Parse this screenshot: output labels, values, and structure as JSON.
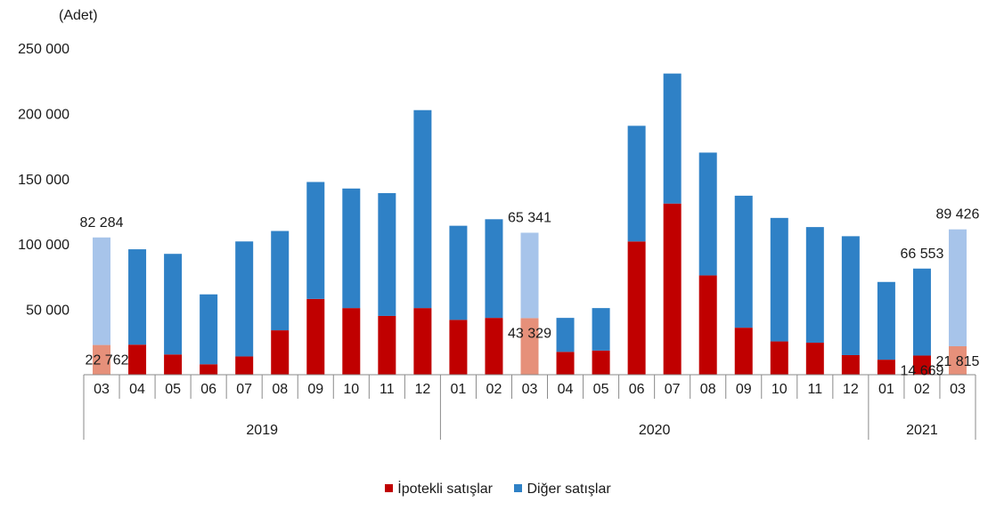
{
  "chart_data": {
    "type": "bar",
    "stacked": true,
    "unit_label": "(Adet)",
    "title": "",
    "ylim": [
      0,
      250000
    ],
    "yticks": [
      0,
      50000,
      100000,
      150000,
      200000,
      250000
    ],
    "ytick_labels": [
      "",
      "50 000",
      "100 000",
      "150 000",
      "200 000",
      "250 000"
    ],
    "categories": [
      "03",
      "04",
      "05",
      "06",
      "07",
      "08",
      "09",
      "10",
      "11",
      "12",
      "01",
      "02",
      "03",
      "04",
      "05",
      "06",
      "07",
      "08",
      "09",
      "10",
      "11",
      "12",
      "01",
      "02",
      "03"
    ],
    "years": [
      {
        "label": "2019",
        "count": 10
      },
      {
        "label": "2020",
        "count": 12
      },
      {
        "label": "2021",
        "count": 3
      }
    ],
    "series": [
      {
        "name": "İpotekli satışlar",
        "color": "#c00000",
        "highlight_color": "#e6907a",
        "values": [
          22762,
          23000,
          15500,
          8000,
          14000,
          34000,
          58000,
          51000,
          45000,
          51000,
          42000,
          43500,
          43329,
          17500,
          18500,
          102000,
          131000,
          76000,
          36000,
          25500,
          24500,
          15000,
          11500,
          14669,
          21815
        ]
      },
      {
        "name": "Diğer satışlar",
        "color": "#2f81c6",
        "highlight_color": "#a7c4ea",
        "values": [
          82284,
          73000,
          77000,
          53500,
          88000,
          76000,
          89500,
          91500,
          94000,
          151500,
          72000,
          75500,
          65341,
          26000,
          32500,
          88500,
          99500,
          94000,
          101000,
          94500,
          88500,
          91000,
          59500,
          66553,
          89426
        ]
      }
    ],
    "highlighted_indices": [
      0,
      12,
      24
    ],
    "data_labels": [
      {
        "index": 0,
        "series": 1,
        "text": "82 284"
      },
      {
        "index": 0,
        "series": 0,
        "text": "22 762"
      },
      {
        "index": 12,
        "series": 1,
        "text": "65 341"
      },
      {
        "index": 12,
        "series": 0,
        "text": "43 329"
      },
      {
        "index": 23,
        "series": 1,
        "text": "66 553"
      },
      {
        "index": 23,
        "series": 0,
        "text": "14 669"
      },
      {
        "index": 24,
        "series": 1,
        "text": "89 426"
      },
      {
        "index": 24,
        "series": 0,
        "text": "21 815"
      }
    ],
    "grid": false,
    "legend": "bottom-center"
  }
}
